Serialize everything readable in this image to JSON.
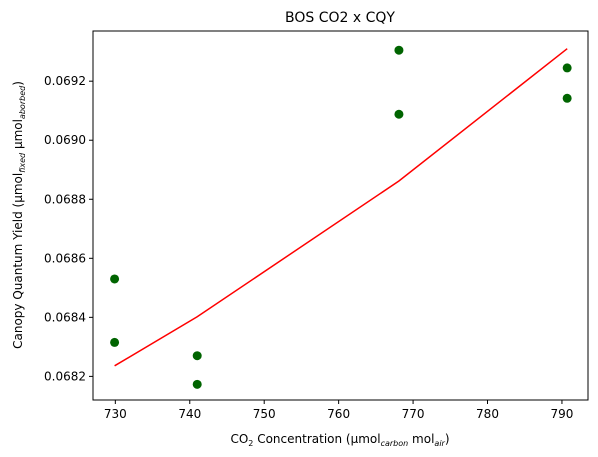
{
  "chart_data": {
    "type": "scatter",
    "title": "BOS CO2 x CQY",
    "xlabel": {
      "prefix": "CO",
      "sub1": "2",
      "middle": " Concentration (µmol",
      "sub2": "carbon",
      "middle2": " mol",
      "sub3": "air",
      "suffix": ")"
    },
    "ylabel": {
      "prefix": "Canopy Quantum Yield (µmol",
      "sub1": "fixed",
      "middle": " µmol",
      "sub2": "aborbed",
      "suffix": ")"
    },
    "xlim": [
      727,
      793.5
    ],
    "ylim": [
      0.06812,
      0.06937
    ],
    "xticks": [
      730,
      740,
      750,
      760,
      770,
      780,
      790
    ],
    "yticks": [
      0.0682,
      0.0684,
      0.0686,
      0.0688,
      0.069,
      0.0692
    ],
    "grid": false,
    "series": [
      {
        "kind": "scatter",
        "color": "#006400",
        "points": [
          {
            "x": 729.9,
            "y": 0.06853
          },
          {
            "x": 729.9,
            "y": 0.068315
          },
          {
            "x": 741.0,
            "y": 0.06827
          },
          {
            "x": 741.0,
            "y": 0.068173
          },
          {
            "x": 768.1,
            "y": 0.069305
          },
          {
            "x": 768.1,
            "y": 0.069088
          },
          {
            "x": 790.7,
            "y": 0.069245
          },
          {
            "x": 790.7,
            "y": 0.069142
          }
        ]
      },
      {
        "kind": "line",
        "color": "#ff0000",
        "points": [
          {
            "x": 729.9,
            "y": 0.068236
          },
          {
            "x": 741.0,
            "y": 0.068402
          },
          {
            "x": 768.1,
            "y": 0.068862
          },
          {
            "x": 790.7,
            "y": 0.06931
          }
        ]
      }
    ]
  }
}
